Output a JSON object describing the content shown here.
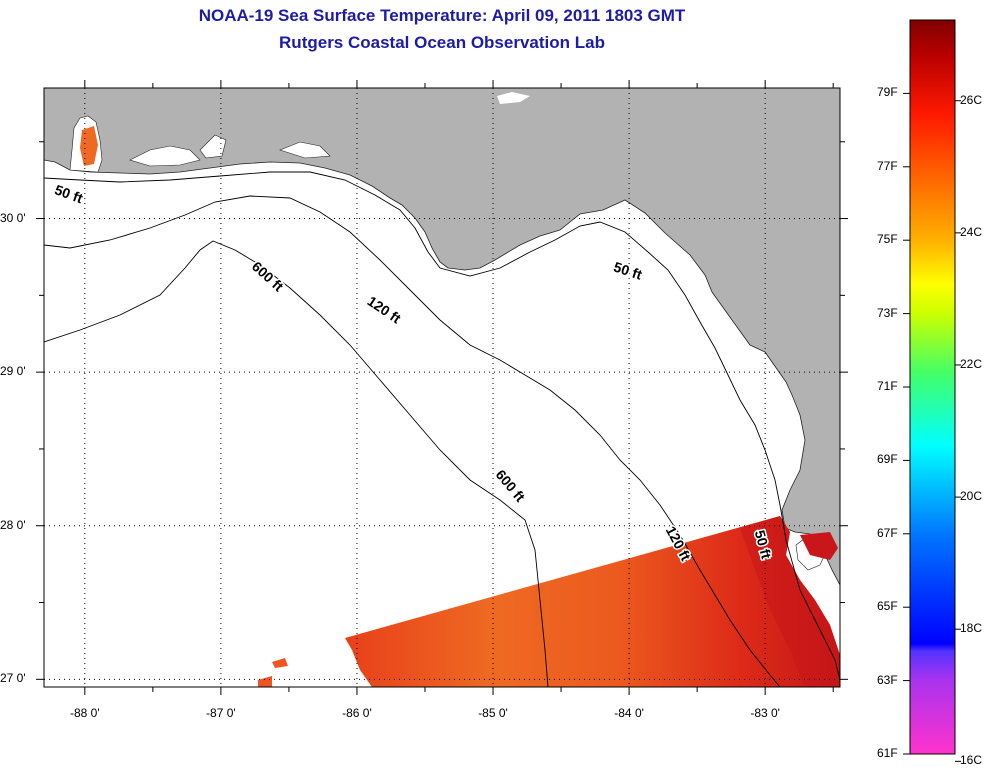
{
  "title": {
    "line1": "NOAA-19 Sea Surface Temperature:  April 09, 2011 1803 GMT",
    "line2": "Rutgers Coastal Ocean Observation Lab"
  },
  "map": {
    "lon_range": [
      -88.3,
      -82.45
    ],
    "lat_range": [
      26.95,
      30.85
    ],
    "lon_ticks": [
      {
        "value": -88,
        "label": "-88 0'"
      },
      {
        "value": -87,
        "label": "-87 0'"
      },
      {
        "value": -86,
        "label": "-86 0'"
      },
      {
        "value": -85,
        "label": "-85 0'"
      },
      {
        "value": -84,
        "label": "-84 0'"
      },
      {
        "value": -83,
        "label": "-83 0'"
      }
    ],
    "lat_ticks": [
      {
        "value": 30,
        "label": "30 0'"
      },
      {
        "value": 29,
        "label": "29 0'"
      },
      {
        "value": 28,
        "label": "28 0'"
      },
      {
        "value": 27,
        "label": "27 0'"
      }
    ],
    "contour_labels": [
      {
        "text": "50 ft",
        "lon": -88.13,
        "lat": 30.13
      },
      {
        "text": "600 ft",
        "lon": -86.68,
        "lat": 29.6
      },
      {
        "text": "120 ft",
        "lon": -85.82,
        "lat": 29.38
      },
      {
        "text": "50 ft",
        "lon": -84.02,
        "lat": 29.63
      },
      {
        "text": "600 ft",
        "lon": -84.9,
        "lat": 28.24
      },
      {
        "text": "120 ft",
        "lon": -83.67,
        "lat": 27.87
      },
      {
        "text": "50 ft",
        "lon": -83.05,
        "lat": 27.87
      }
    ],
    "colors": {
      "land": "#b2b2b2",
      "ocean": "#ffffff",
      "contour": "#000000",
      "sst_main": "#ea4a1c",
      "sst_warm": "#cc1a1a"
    }
  },
  "colorbar": {
    "f_labels": [
      "79F",
      "77F",
      "75F",
      "73F",
      "71F",
      "69F",
      "67F",
      "65F",
      "63F",
      "61F"
    ],
    "c_labels": [
      "26C",
      "24C",
      "22C",
      "20C",
      "18C",
      "16C"
    ],
    "colors": [
      "#ff33cc",
      "#6633ff",
      "#0000ff",
      "#00aaff",
      "#00ffff",
      "#33ff66",
      "#ffff00",
      "#ff9900",
      "#ff2200",
      "#aa0000",
      "#800000"
    ]
  }
}
